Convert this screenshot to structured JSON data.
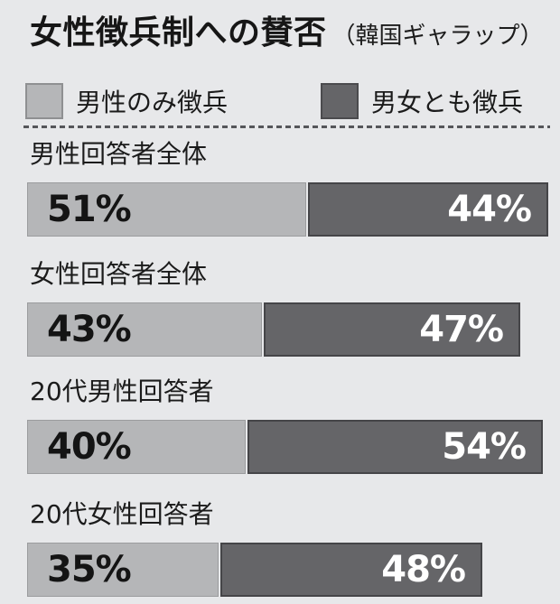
{
  "title": {
    "main": "女性徴兵制への賛否",
    "source": "（韓国ギャラップ）"
  },
  "legend": {
    "items": [
      {
        "label": "男性のみ徴兵",
        "color": "#b5b6b8"
      },
      {
        "label": "男女とも徴兵",
        "color": "#656568"
      }
    ]
  },
  "colors": {
    "background": "#e7e8ea",
    "male_only_bar": "#b5b6b8",
    "both_bar": "#656568",
    "value_text_on_light": "#141414",
    "value_text_on_dark": "#ffffff"
  },
  "chart_data": {
    "type": "bar",
    "orientation": "horizontal-stacked",
    "title": "女性徴兵制への賛否（韓国ギャラップ）",
    "categories": [
      "男性回答者全体",
      "女性回答者全体",
      "20代男性回答者",
      "20代女性回答者"
    ],
    "series": [
      {
        "name": "男性のみ徴兵",
        "color": "#b5b6b8",
        "values": [
          51,
          43,
          40,
          35
        ]
      },
      {
        "name": "男女とも徴兵",
        "color": "#656568",
        "values": [
          44,
          47,
          54,
          48
        ]
      }
    ],
    "value_suffix": "%",
    "xlim": [
      0,
      100
    ],
    "grid": false,
    "legend_position": "top"
  }
}
